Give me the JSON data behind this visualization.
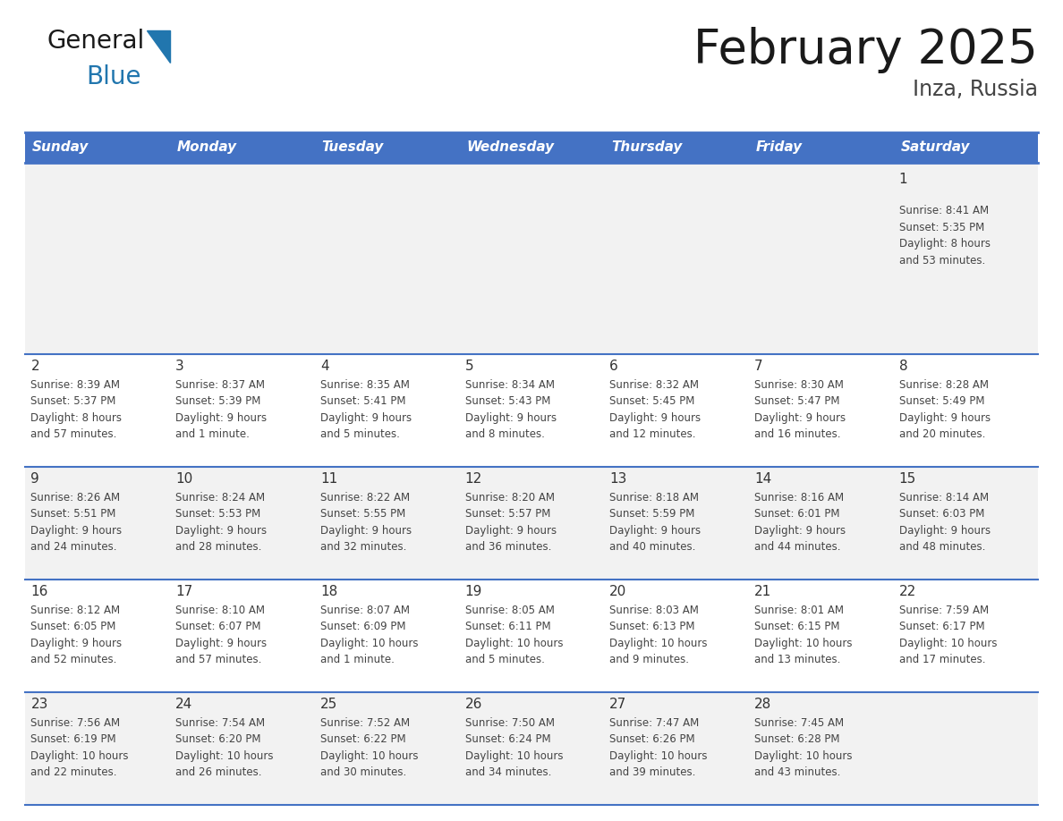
{
  "title": "February 2025",
  "subtitle": "Inza, Russia",
  "days_of_week": [
    "Sunday",
    "Monday",
    "Tuesday",
    "Wednesday",
    "Thursday",
    "Friday",
    "Saturday"
  ],
  "header_bg": "#4472C4",
  "header_text_color": "#FFFFFF",
  "cell_bg": "#FFFFFF",
  "cell_bg_light": "#F2F2F2",
  "border_color": "#4472C4",
  "text_color": "#444444",
  "day_number_color": "#333333",
  "title_color": "#1a1a1a",
  "subtitle_color": "#444444",
  "logo_general_color": "#1a1a1a",
  "logo_blue_color": "#2176AE",
  "weeks": [
    [
      {
        "day": null,
        "info": null
      },
      {
        "day": null,
        "info": null
      },
      {
        "day": null,
        "info": null
      },
      {
        "day": null,
        "info": null
      },
      {
        "day": null,
        "info": null
      },
      {
        "day": null,
        "info": null
      },
      {
        "day": 1,
        "info": "Sunrise: 8:41 AM\nSunset: 5:35 PM\nDaylight: 8 hours\nand 53 minutes."
      }
    ],
    [
      {
        "day": 2,
        "info": "Sunrise: 8:39 AM\nSunset: 5:37 PM\nDaylight: 8 hours\nand 57 minutes."
      },
      {
        "day": 3,
        "info": "Sunrise: 8:37 AM\nSunset: 5:39 PM\nDaylight: 9 hours\nand 1 minute."
      },
      {
        "day": 4,
        "info": "Sunrise: 8:35 AM\nSunset: 5:41 PM\nDaylight: 9 hours\nand 5 minutes."
      },
      {
        "day": 5,
        "info": "Sunrise: 8:34 AM\nSunset: 5:43 PM\nDaylight: 9 hours\nand 8 minutes."
      },
      {
        "day": 6,
        "info": "Sunrise: 8:32 AM\nSunset: 5:45 PM\nDaylight: 9 hours\nand 12 minutes."
      },
      {
        "day": 7,
        "info": "Sunrise: 8:30 AM\nSunset: 5:47 PM\nDaylight: 9 hours\nand 16 minutes."
      },
      {
        "day": 8,
        "info": "Sunrise: 8:28 AM\nSunset: 5:49 PM\nDaylight: 9 hours\nand 20 minutes."
      }
    ],
    [
      {
        "day": 9,
        "info": "Sunrise: 8:26 AM\nSunset: 5:51 PM\nDaylight: 9 hours\nand 24 minutes."
      },
      {
        "day": 10,
        "info": "Sunrise: 8:24 AM\nSunset: 5:53 PM\nDaylight: 9 hours\nand 28 minutes."
      },
      {
        "day": 11,
        "info": "Sunrise: 8:22 AM\nSunset: 5:55 PM\nDaylight: 9 hours\nand 32 minutes."
      },
      {
        "day": 12,
        "info": "Sunrise: 8:20 AM\nSunset: 5:57 PM\nDaylight: 9 hours\nand 36 minutes."
      },
      {
        "day": 13,
        "info": "Sunrise: 8:18 AM\nSunset: 5:59 PM\nDaylight: 9 hours\nand 40 minutes."
      },
      {
        "day": 14,
        "info": "Sunrise: 8:16 AM\nSunset: 6:01 PM\nDaylight: 9 hours\nand 44 minutes."
      },
      {
        "day": 15,
        "info": "Sunrise: 8:14 AM\nSunset: 6:03 PM\nDaylight: 9 hours\nand 48 minutes."
      }
    ],
    [
      {
        "day": 16,
        "info": "Sunrise: 8:12 AM\nSunset: 6:05 PM\nDaylight: 9 hours\nand 52 minutes."
      },
      {
        "day": 17,
        "info": "Sunrise: 8:10 AM\nSunset: 6:07 PM\nDaylight: 9 hours\nand 57 minutes."
      },
      {
        "day": 18,
        "info": "Sunrise: 8:07 AM\nSunset: 6:09 PM\nDaylight: 10 hours\nand 1 minute."
      },
      {
        "day": 19,
        "info": "Sunrise: 8:05 AM\nSunset: 6:11 PM\nDaylight: 10 hours\nand 5 minutes."
      },
      {
        "day": 20,
        "info": "Sunrise: 8:03 AM\nSunset: 6:13 PM\nDaylight: 10 hours\nand 9 minutes."
      },
      {
        "day": 21,
        "info": "Sunrise: 8:01 AM\nSunset: 6:15 PM\nDaylight: 10 hours\nand 13 minutes."
      },
      {
        "day": 22,
        "info": "Sunrise: 7:59 AM\nSunset: 6:17 PM\nDaylight: 10 hours\nand 17 minutes."
      }
    ],
    [
      {
        "day": 23,
        "info": "Sunrise: 7:56 AM\nSunset: 6:19 PM\nDaylight: 10 hours\nand 22 minutes."
      },
      {
        "day": 24,
        "info": "Sunrise: 7:54 AM\nSunset: 6:20 PM\nDaylight: 10 hours\nand 26 minutes."
      },
      {
        "day": 25,
        "info": "Sunrise: 7:52 AM\nSunset: 6:22 PM\nDaylight: 10 hours\nand 30 minutes."
      },
      {
        "day": 26,
        "info": "Sunrise: 7:50 AM\nSunset: 6:24 PM\nDaylight: 10 hours\nand 34 minutes."
      },
      {
        "day": 27,
        "info": "Sunrise: 7:47 AM\nSunset: 6:26 PM\nDaylight: 10 hours\nand 39 minutes."
      },
      {
        "day": 28,
        "info": "Sunrise: 7:45 AM\nSunset: 6:28 PM\nDaylight: 10 hours\nand 43 minutes."
      },
      {
        "day": null,
        "info": null
      }
    ]
  ]
}
